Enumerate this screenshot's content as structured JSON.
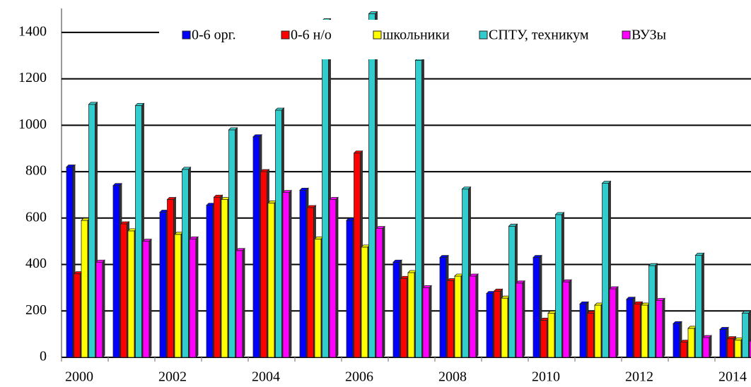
{
  "chart_data": {
    "type": "bar",
    "categories": [
      "2000",
      null,
      "2002",
      null,
      "2004",
      null,
      "2006",
      null,
      "2008",
      null,
      "2010",
      null,
      "2012",
      null,
      "2014"
    ],
    "series": [
      {
        "name": "0-6 орг.",
        "color": "#0000ff",
        "values": [
          820,
          740,
          625,
          655,
          950,
          720,
          590,
          410,
          430,
          275,
          430,
          230,
          250,
          145,
          120
        ]
      },
      {
        "name": "0-6 н/о",
        "color": "#ff0000",
        "values": [
          360,
          575,
          680,
          690,
          800,
          645,
          880,
          340,
          330,
          285,
          160,
          190,
          230,
          65,
          80
        ]
      },
      {
        "name": "школьники",
        "color": "#ffff00",
        "values": [
          590,
          545,
          530,
          680,
          665,
          510,
          475,
          365,
          350,
          255,
          190,
          225,
          225,
          125,
          75
        ]
      },
      {
        "name": "СПТУ, техникум",
        "color": "#33cccc",
        "values": [
          1090,
          1085,
          810,
          980,
          1065,
          1450,
          1480,
          1280,
          725,
          565,
          615,
          750,
          395,
          440,
          190
        ]
      },
      {
        "name": "ВУЗы",
        "color": "#ff00ff",
        "values": [
          410,
          500,
          510,
          460,
          710,
          680,
          555,
          300,
          350,
          320,
          325,
          295,
          245,
          85,
          70
        ]
      }
    ],
    "ylim": [
      0,
      1500
    ],
    "yticks": [
      0,
      200,
      400,
      600,
      800,
      1000,
      1200,
      1400
    ],
    "grid": true,
    "legend": "top"
  }
}
